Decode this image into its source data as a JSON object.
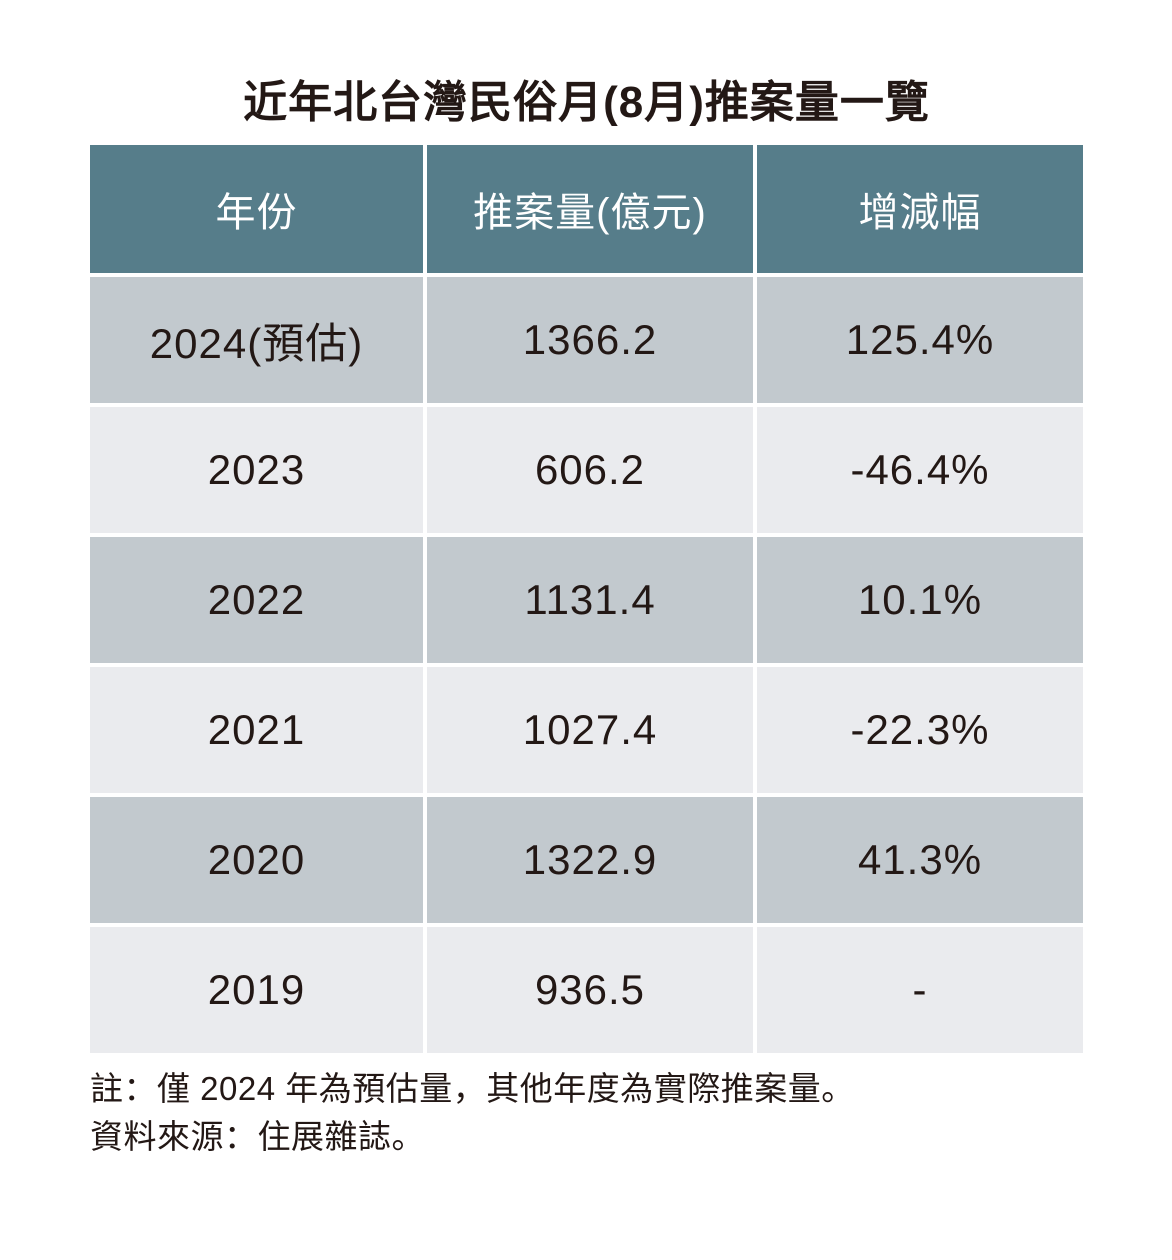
{
  "title": "近年北台灣民俗月(8月)推案量一覽",
  "table": {
    "headers": [
      "年份",
      "推案量(億元)",
      "增減幅"
    ],
    "rows": [
      [
        "2024(預估)",
        "1366.2",
        "125.4%"
      ],
      [
        "2023",
        "606.2",
        "-46.4%"
      ],
      [
        "2022",
        "1131.4",
        "10.1%"
      ],
      [
        "2021",
        "1027.4",
        "-22.3%"
      ],
      [
        "2020",
        "1322.9",
        "41.3%"
      ],
      [
        "2019",
        "936.5",
        "-"
      ]
    ]
  },
  "notes": [
    "註：僅 2024 年為預估量，其他年度為實際推案量。",
    "資料來源：住展雜誌。"
  ],
  "chart_data": {
    "type": "table",
    "title": "近年北台灣民俗月(8月)推案量一覽",
    "columns": [
      "年份",
      "推案量(億元)",
      "增減幅"
    ],
    "categories": [
      "2024(預估)",
      "2023",
      "2022",
      "2021",
      "2020",
      "2019"
    ],
    "series": [
      {
        "name": "推案量(億元)",
        "values": [
          1366.2,
          606.2,
          1131.4,
          1027.4,
          1322.9,
          936.5
        ]
      },
      {
        "name": "增減幅(%)",
        "values": [
          125.4,
          -46.4,
          10.1,
          -22.3,
          41.3,
          null
        ]
      }
    ],
    "footnotes": [
      "註：僅 2024 年為預估量，其他年度為實際推案量。",
      "資料來源：住展雜誌。"
    ]
  },
  "colors": {
    "header_bg": "#567D8A",
    "row_dark": "#C2C9CE",
    "row_light": "#EAEBEE",
    "text_dark": "#231815",
    "header_text": "#FFFFFF",
    "page_bg": "#FFFFFF"
  }
}
